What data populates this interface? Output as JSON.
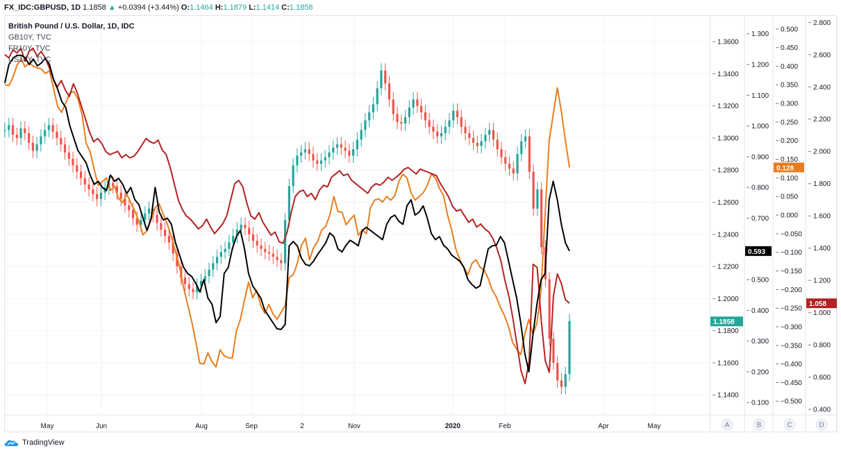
{
  "topbar": {
    "symbol": "FX_IDC:GBPUSD, 1D",
    "last": "1.1858",
    "arrow": "▲",
    "change": "+0.0394 (+3.44%)",
    "o_label": "O:",
    "o_value": "1.1464",
    "h_label": "H:",
    "h_value": "1.1879",
    "l_label": "L:",
    "l_value": "1.1414",
    "c_label": "C:",
    "c_value": "1.1858"
  },
  "legend": {
    "title": "British Pound / U.S. Dollar, 1D, IDC",
    "rows": [
      "GB10Y, TVC",
      "FR10Y, TVC",
      "US10Y, TVC"
    ]
  },
  "footer": {
    "brand": "TradingView",
    "logo_icon": "tradingview-cloud-icon"
  },
  "scale_buttons": [
    "A",
    "B",
    "C",
    "D"
  ],
  "colors": {
    "up": "#26a69a",
    "down": "#ef5350",
    "gb10y": "#e87c1e",
    "fr10y": "#b22222",
    "us10y": "#000000",
    "grid": "#f0f3fa",
    "axis_text": "#131722"
  },
  "chart_data": {
    "type": "line",
    "title": "British Pound / U.S. Dollar, 1D, IDC",
    "x_tick_labels": [
      "May",
      "Jun",
      "Aug",
      "Sep",
      "2",
      "Nov",
      "2020",
      "Feb",
      "Apr",
      "May"
    ],
    "axes": {
      "A": {
        "series": "GBPUSD",
        "range": [
          1.128,
          1.376
        ],
        "ticks": [
          "1.3600",
          "1.3400",
          "1.3200",
          "1.3000",
          "1.2800",
          "1.2600",
          "1.2400",
          "1.2200",
          "1.2000",
          "1.1800",
          "1.1600",
          "1.1400"
        ],
        "last_value": "1.1858",
        "last_color": "#26a69a"
      },
      "B": {
        "series": "US10Y",
        "range": [
          0.062,
          1.358
        ],
        "ticks": [
          "1.300",
          "1.200",
          "1.100",
          "1.000",
          "0.900",
          "0.800",
          "0.700",
          "0.600",
          "0.500",
          "0.400",
          "0.300",
          "0.200",
          "0.100"
        ],
        "last_value": "0.593",
        "last_color": "#000000"
      },
      "C": {
        "series": "GB10Y",
        "range": [
          -0.535,
          0.535
        ],
        "ticks": [
          "0.500",
          "0.450",
          "0.400",
          "0.350",
          "0.300",
          "0.250",
          "0.200",
          "0.150",
          "0.100",
          "0.050",
          "0.000",
          "−0.050",
          "−0.100",
          "−0.150",
          "−0.200",
          "−0.250",
          "−0.300",
          "−0.350",
          "−0.400",
          "−0.450",
          "−0.500"
        ],
        "last_value": "0.128",
        "last_color": "#e87c1e"
      },
      "D": {
        "series": "FR10Y",
        "range": [
          0.37,
          2.84
        ],
        "ticks": [
          "2.800",
          "2.600",
          "2.400",
          "2.200",
          "2.000",
          "1.800",
          "1.600",
          "1.400",
          "1.200",
          "1.000",
          "0.800",
          "0.600",
          "0.400"
        ],
        "last_value": "1.058",
        "last_color": "#b22222"
      }
    },
    "gbpusd_close": [
      1.305,
      1.308,
      1.302,
      1.3,
      1.306,
      1.303,
      1.297,
      1.292,
      1.296,
      1.301,
      1.305,
      1.308,
      1.304,
      1.3,
      1.296,
      1.291,
      1.287,
      1.283,
      1.279,
      1.275,
      1.271,
      1.268,
      1.265,
      1.262,
      1.266,
      1.269,
      1.272,
      1.27,
      1.266,
      1.262,
      1.258,
      1.255,
      1.25,
      1.246,
      1.249,
      1.253,
      1.256,
      1.252,
      1.247,
      1.243,
      1.239,
      1.235,
      1.228,
      1.22,
      1.213,
      1.209,
      1.206,
      1.204,
      1.208,
      1.211,
      1.214,
      1.218,
      1.222,
      1.226,
      1.229,
      1.231,
      1.235,
      1.239,
      1.243,
      1.246,
      1.244,
      1.24,
      1.236,
      1.233,
      1.231,
      1.229,
      1.228,
      1.226,
      1.224,
      1.222,
      1.249,
      1.27,
      1.283,
      1.289,
      1.291,
      1.293,
      1.29,
      1.286,
      1.284,
      1.286,
      1.288,
      1.291,
      1.294,
      1.296,
      1.294,
      1.292,
      1.289,
      1.293,
      1.299,
      1.305,
      1.311,
      1.316,
      1.321,
      1.331,
      1.342,
      1.334,
      1.324,
      1.315,
      1.31,
      1.309,
      1.313,
      1.319,
      1.324,
      1.32,
      1.316,
      1.311,
      1.307,
      1.304,
      1.301,
      1.303,
      1.307,
      1.311,
      1.317,
      1.313,
      1.307,
      1.303,
      1.3,
      1.297,
      1.295,
      1.298,
      1.302,
      1.305,
      1.299,
      1.293,
      1.288,
      1.284,
      1.281,
      1.278,
      1.29,
      1.298,
      1.301,
      1.279,
      1.256,
      1.268,
      1.232,
      1.212,
      1.175,
      1.16,
      1.149,
      1.145,
      1.153,
      1.186
    ],
    "series": [
      {
        "name": "GB10Y, TVC",
        "axis": "C",
        "color": "#e87c1e",
        "values": [
          0.35,
          0.348,
          0.37,
          0.403,
          0.42,
          0.398,
          0.41,
          0.4,
          0.396,
          0.392,
          0.38,
          0.388,
          0.34,
          0.292,
          0.276,
          0.302,
          0.328,
          0.332,
          0.312,
          0.27,
          0.194,
          0.17,
          0.122,
          0.08,
          0.09,
          0.1,
          0.066,
          0.078,
          0.044,
          0.034,
          0.056,
          0.034,
          0.01,
          -0.016,
          -0.053,
          -0.042,
          -0.012,
          0.02,
          0.03,
          0.002,
          -0.024,
          -0.058,
          -0.098,
          -0.138,
          -0.196,
          -0.24,
          -0.286,
          -0.34,
          -0.398,
          -0.4,
          -0.37,
          -0.394,
          -0.408,
          -0.362,
          -0.378,
          -0.383,
          -0.384,
          -0.312,
          -0.28,
          -0.228,
          -0.18,
          -0.222,
          -0.202,
          -0.243,
          -0.264,
          -0.24,
          -0.265,
          -0.28,
          -0.262,
          -0.242,
          -0.168,
          -0.16,
          -0.13,
          -0.082,
          -0.062,
          -0.12,
          -0.088,
          -0.07,
          -0.04,
          -0.03,
          0.0,
          0.05,
          0.01,
          0.008,
          -0.026,
          -0.012,
          0.0,
          -0.054,
          -0.04,
          -0.05,
          0.02,
          0.04,
          0.044,
          0.035,
          0.05,
          0.04,
          0.052,
          0.09,
          0.11,
          0.1,
          0.06,
          0.04,
          0.05,
          0.06,
          0.08,
          0.11,
          0.1,
          0.072,
          0.052,
          0.0,
          -0.04,
          -0.09,
          -0.12,
          -0.14,
          -0.16,
          -0.13,
          -0.12,
          -0.14,
          -0.148,
          -0.17,
          -0.202,
          -0.22,
          -0.248,
          -0.27,
          -0.3,
          -0.342,
          -0.36,
          -0.375,
          -0.32,
          -0.28,
          -0.32,
          -0.29,
          -0.2,
          0.0,
          0.2,
          0.27,
          0.342,
          0.28,
          0.2,
          0.128
        ]
      },
      {
        "name": "FR10Y, TVC",
        "axis": "D",
        "color": "#b22222",
        "values": [
          2.6,
          2.58,
          2.63,
          2.61,
          2.64,
          2.56,
          2.62,
          2.64,
          2.59,
          2.62,
          2.58,
          2.52,
          2.45,
          2.4,
          2.44,
          2.38,
          2.34,
          2.42,
          2.36,
          2.28,
          2.2,
          2.12,
          2.06,
          2.08,
          2.05,
          2.0,
          1.98,
          1.99,
          2.0,
          1.96,
          1.98,
          1.96,
          1.97,
          2.0,
          2.04,
          2.08,
          2.06,
          2.05,
          2.07,
          2.01,
          1.98,
          1.9,
          1.8,
          1.7,
          1.64,
          1.6,
          1.58,
          1.55,
          1.52,
          1.54,
          1.58,
          1.53,
          1.49,
          1.52,
          1.55,
          1.6,
          1.7,
          1.8,
          1.82,
          1.78,
          1.68,
          1.6,
          1.58,
          1.62,
          1.56,
          1.52,
          1.48,
          1.5,
          1.44,
          1.43,
          1.5,
          1.62,
          1.72,
          1.75,
          1.76,
          1.72,
          1.74,
          1.7,
          1.76,
          1.79,
          1.78,
          1.84,
          1.86,
          1.88,
          1.85,
          1.86,
          1.82,
          1.8,
          1.78,
          1.76,
          1.74,
          1.78,
          1.8,
          1.79,
          1.81,
          1.84,
          1.82,
          1.84,
          1.86,
          1.89,
          1.9,
          1.88,
          1.86,
          1.89,
          1.88,
          1.87,
          1.86,
          1.85,
          1.8,
          1.76,
          1.72,
          1.66,
          1.63,
          1.64,
          1.6,
          1.56,
          1.58,
          1.53,
          1.55,
          1.52,
          1.5,
          1.46,
          1.4,
          1.32,
          1.2,
          1.1,
          0.96,
          0.8,
          0.64,
          0.56,
          0.7,
          1.3,
          1.28,
          0.95,
          0.7,
          0.63,
          1.1,
          1.24,
          1.18,
          1.08,
          1.058
        ]
      },
      {
        "name": "US10Y, TVC",
        "axis": "B",
        "color": "#000000",
        "values": [
          1.14,
          1.2,
          1.22,
          1.23,
          1.23,
          1.222,
          1.2,
          1.218,
          1.196,
          1.205,
          1.22,
          1.2,
          1.15,
          1.12,
          1.08,
          1.06,
          1.0,
          0.96,
          0.92,
          0.9,
          0.88,
          0.84,
          0.81,
          0.82,
          0.8,
          0.79,
          0.84,
          0.82,
          0.83,
          0.81,
          0.78,
          0.8,
          0.76,
          0.744,
          0.7,
          0.66,
          0.7,
          0.8,
          0.72,
          0.694,
          0.7,
          0.68,
          0.62,
          0.58,
          0.54,
          0.52,
          0.51,
          0.488,
          0.46,
          0.5,
          0.44,
          0.42,
          0.36,
          0.38,
          0.52,
          0.54,
          0.6,
          0.64,
          0.66,
          0.6,
          0.52,
          0.48,
          0.46,
          0.44,
          0.4,
          0.38,
          0.36,
          0.34,
          0.338,
          0.354,
          0.61,
          0.624,
          0.61,
          0.57,
          0.55,
          0.545,
          0.56,
          0.582,
          0.6,
          0.62,
          0.652,
          0.64,
          0.6,
          0.59,
          0.612,
          0.628,
          0.62,
          0.61,
          0.66,
          0.67,
          0.66,
          0.65,
          0.64,
          0.63,
          0.68,
          0.702,
          0.71,
          0.69,
          0.68,
          0.74,
          0.76,
          0.71,
          0.72,
          0.74,
          0.7,
          0.65,
          0.63,
          0.64,
          0.612,
          0.6,
          0.58,
          0.57,
          0.56,
          0.54,
          0.5,
          0.484,
          0.472,
          0.48,
          0.54,
          0.6,
          0.61,
          0.612,
          0.64,
          0.62,
          0.56,
          0.5,
          0.44,
          0.36,
          0.26,
          0.2,
          0.32,
          0.42,
          0.5,
          0.52,
          0.76,
          0.82,
          0.76,
          0.68,
          0.62,
          0.593
        ]
      }
    ]
  }
}
